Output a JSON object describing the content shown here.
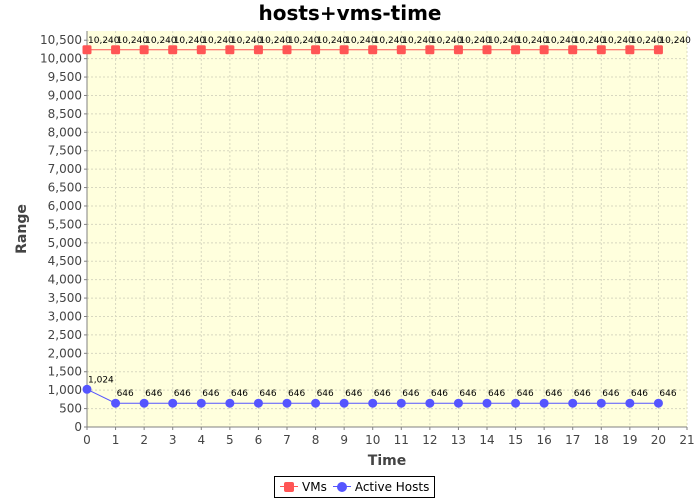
{
  "chart_data": {
    "type": "line",
    "title": "hosts+vms-time",
    "xlabel": "Time",
    "ylabel": "Range",
    "xlim": [
      0,
      21
    ],
    "ylim": [
      0,
      10750
    ],
    "x_ticks": [
      0,
      1,
      2,
      3,
      4,
      5,
      6,
      7,
      8,
      9,
      10,
      11,
      12,
      13,
      14,
      15,
      16,
      17,
      18,
      19,
      20,
      21
    ],
    "y_ticks": [
      0,
      500,
      1000,
      1500,
      2000,
      2500,
      3000,
      3500,
      4000,
      4500,
      5000,
      5500,
      6000,
      6500,
      7000,
      7500,
      8000,
      8500,
      9000,
      9500,
      10000,
      10500
    ],
    "grid": true,
    "legend_position": "bottom",
    "plot_background": "#ffffdd",
    "series": [
      {
        "name": "VMs",
        "color": "#ff5555",
        "marker": "square",
        "x": [
          0,
          1,
          2,
          3,
          4,
          5,
          6,
          7,
          8,
          9,
          10,
          11,
          12,
          13,
          14,
          15,
          16,
          17,
          18,
          19,
          20
        ],
        "values": [
          10240,
          10240,
          10240,
          10240,
          10240,
          10240,
          10240,
          10240,
          10240,
          10240,
          10240,
          10240,
          10240,
          10240,
          10240,
          10240,
          10240,
          10240,
          10240,
          10240,
          10240
        ]
      },
      {
        "name": "Active Hosts",
        "color": "#5555ff",
        "marker": "circle",
        "x": [
          0,
          1,
          2,
          3,
          4,
          5,
          6,
          7,
          8,
          9,
          10,
          11,
          12,
          13,
          14,
          15,
          16,
          17,
          18,
          19,
          20
        ],
        "values": [
          1024,
          646,
          646,
          646,
          646,
          646,
          646,
          646,
          646,
          646,
          646,
          646,
          646,
          646,
          646,
          646,
          646,
          646,
          646,
          646,
          646
        ]
      }
    ]
  }
}
